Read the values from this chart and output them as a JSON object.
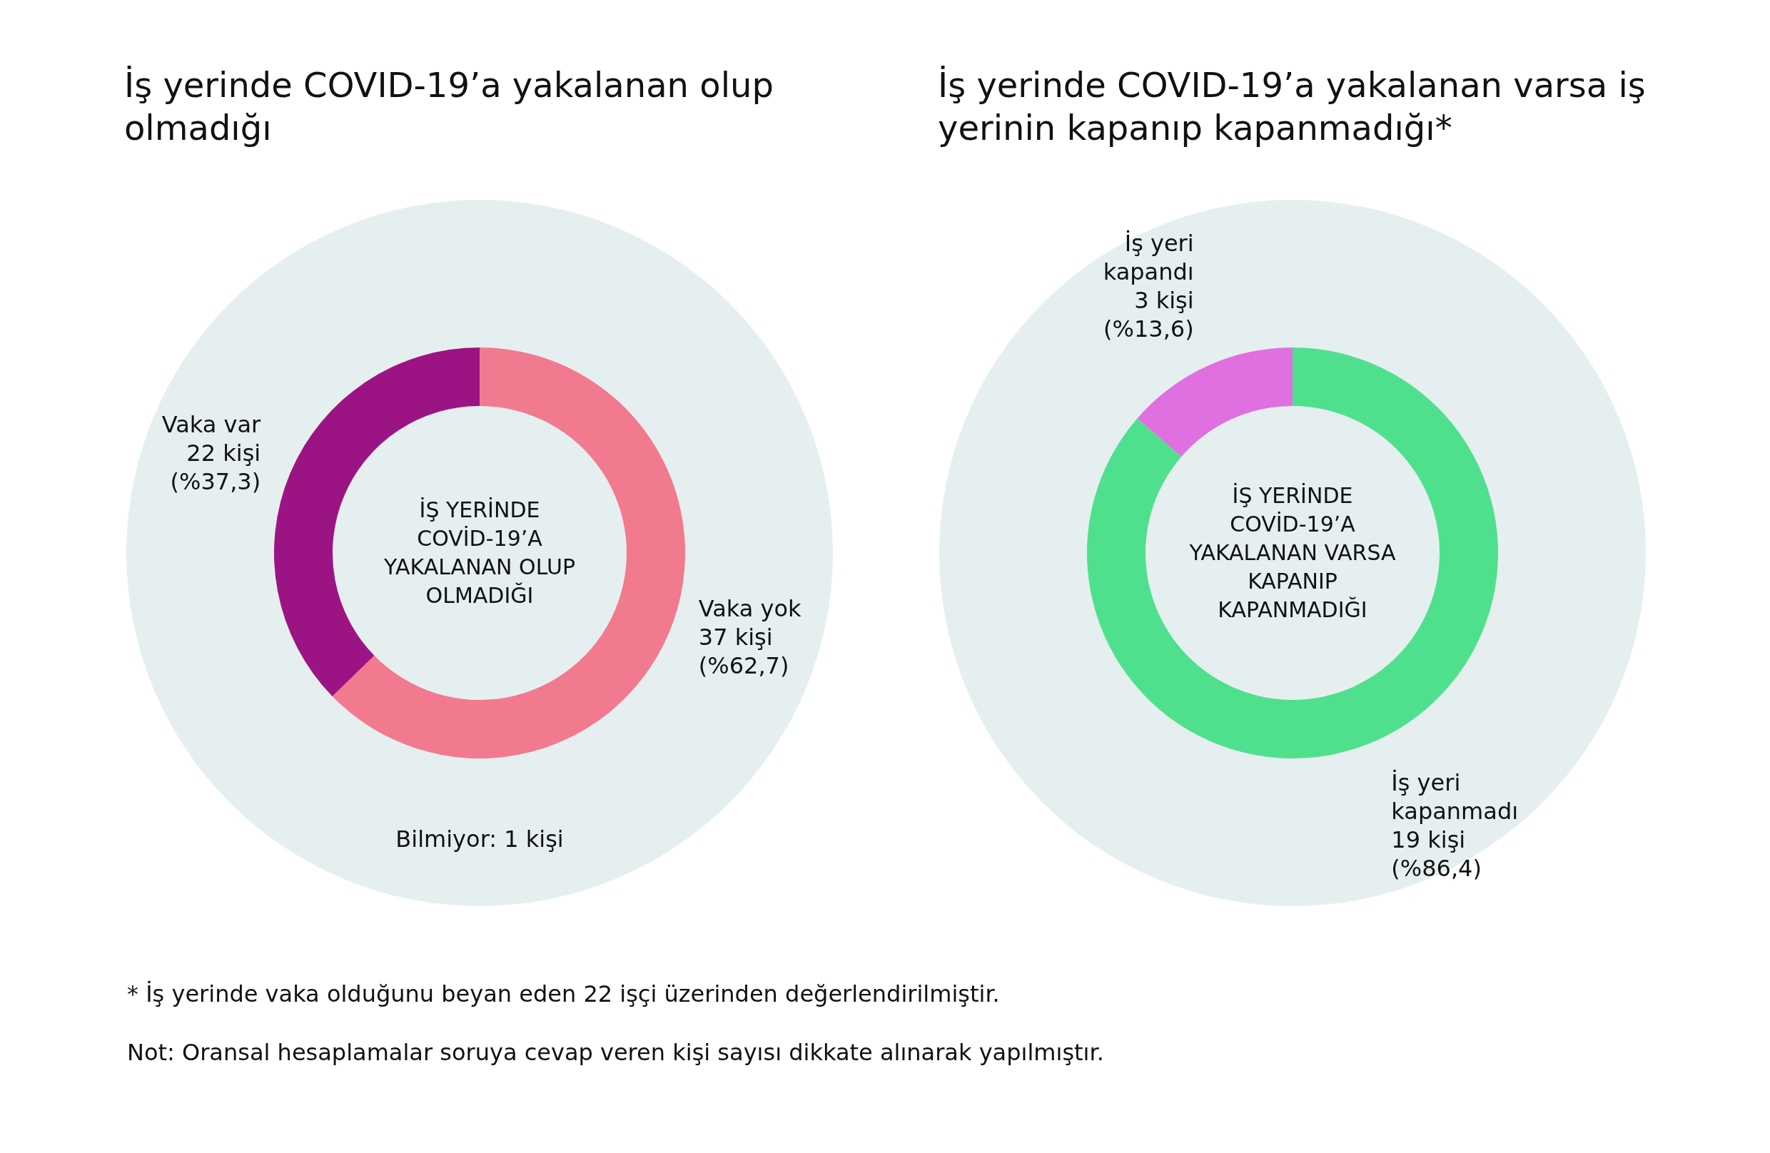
{
  "chart_data": [
    {
      "type": "donut",
      "title": "İş yerinde COVID-19’a yakalanan olup olmadığı",
      "categories": [
        "Vaka yok",
        "Vaka var"
      ],
      "values": [
        37,
        22
      ],
      "colors": [
        "#f27a8f",
        "#9c1484"
      ],
      "value_labels": [
        "37 kişi\n(%62,7)",
        "22 kişi\n(%37,3)"
      ],
      "annotations": [
        "İŞ YERİNDE COVİD-19’A YAKALANAN OLUP OLMADIĞI",
        "Bilmiyor: 1 kişi"
      ]
    },
    {
      "type": "donut",
      "title": "İş yerinde COVID-19’a yakalanan varsa iş yerinin kapanıp kapanmadığı*",
      "categories": [
        "İş yeri kapanmadı",
        "İş yeri kapandı"
      ],
      "values": [
        19,
        3
      ],
      "colors": [
        "#4fe08e",
        "#e070e0"
      ],
      "value_labels": [
        "19 kişi\n(%86,4)",
        "3 kişi\n(%13,6)"
      ],
      "annotations": [
        "İŞ YERİNDE COVİD-19’A YAKALANAN VARSA KAPANIP KAPANMADIĞI",
        "* İş yerinde vaka olduğunu beyan eden 22 işçi üzerinden değerlendirilmiştir.",
        "Not: Oransal hesaplamalar soruya cevap veren kişi sayısı dikkate alınarak yapılmıştır."
      ]
    }
  ]
}
